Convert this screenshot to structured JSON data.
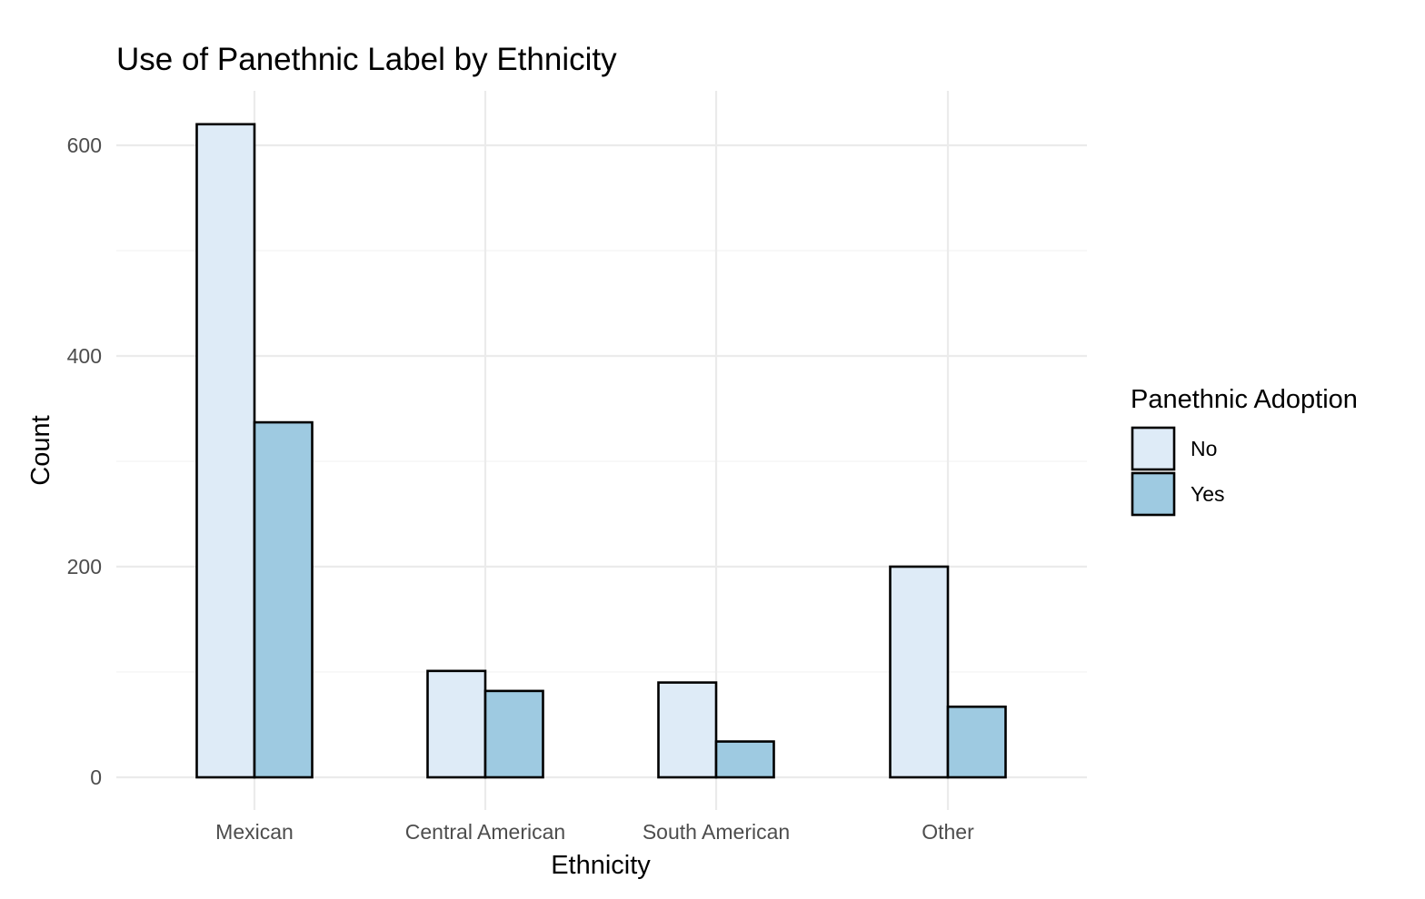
{
  "chart_data": {
    "type": "bar",
    "title": "Use of Panethnic Label by Ethnicity",
    "xlabel": "Ethnicity",
    "ylabel": "Count",
    "categories": [
      "Mexican",
      "Central American",
      "South American",
      "Other"
    ],
    "series": [
      {
        "name": "No",
        "values": [
          620,
          101,
          90,
          200
        ],
        "color": "#deebf7"
      },
      {
        "name": "Yes",
        "values": [
          337,
          82,
          34,
          67
        ],
        "color": "#9ecae1"
      }
    ],
    "ylim": [
      0,
      650
    ],
    "yticks": [
      0,
      200,
      400,
      600
    ],
    "grid": true,
    "legend": {
      "title": "Panethnic Adoption",
      "position": "right",
      "entries": [
        "No",
        "Yes"
      ]
    }
  }
}
